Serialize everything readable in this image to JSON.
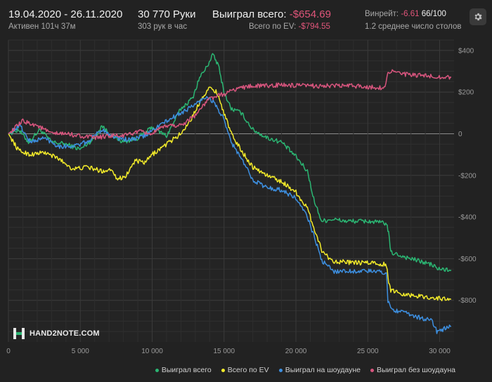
{
  "header": {
    "date_range": "19.04.2020 - 26.11.2020",
    "active": "Активен 101ч 37м",
    "hands": "30 770 Руки",
    "hands_per_hour": "303 рук в час",
    "won_total_label": "Выиграл всего:",
    "won_total_value": "-$654.69",
    "ev_label": "Всего по EV:",
    "ev_value": "-$794.55",
    "winrate_label": "Винрейт:",
    "winrate_value": "-6.61",
    "winrate_rest": "66/100",
    "avg_tables": "1.2 среднее число столов"
  },
  "logo": {
    "text": "HAND2NOTE.COM"
  },
  "icons": {
    "settings": "gear-icon",
    "logo": "hand2note-logo-icon"
  },
  "legend": [
    {
      "label": "Выиграл всего",
      "color": "#2bb673"
    },
    {
      "label": "Всего по EV",
      "color": "#f2ea2a"
    },
    {
      "label": "Выиграл на шоудауне",
      "color": "#3d8fe0"
    },
    {
      "label": "Выиграл без шоудауна",
      "color": "#d8557e"
    }
  ],
  "chart_data": {
    "type": "line",
    "xlim": [
      0,
      31000
    ],
    "ylim": [
      -1000,
      450
    ],
    "x_ticks": [
      {
        "v": 0,
        "label": "0"
      },
      {
        "v": 5000,
        "label": "5 000"
      },
      {
        "v": 10000,
        "label": "10 000"
      },
      {
        "v": 15000,
        "label": "15 000"
      },
      {
        "v": 20000,
        "label": "20 000"
      },
      {
        "v": 25000,
        "label": "25 000"
      },
      {
        "v": 30000,
        "label": "30 000"
      }
    ],
    "y_ticks": [
      {
        "v": 400,
        "label": "$400"
      },
      {
        "v": 200,
        "label": "$200"
      },
      {
        "v": 0,
        "label": "0"
      },
      {
        "v": -200,
        "label": "-$200"
      },
      {
        "v": -400,
        "label": "-$400"
      },
      {
        "v": -600,
        "label": "-$600"
      },
      {
        "v": -800,
        "label": "-$800"
      }
    ],
    "grid": true,
    "legend_position": "bottom-right",
    "series": [
      {
        "name": "Выиграл всего",
        "color": "#2bb673",
        "points": [
          [
            0,
            0
          ],
          [
            700,
            20
          ],
          [
            1400,
            -40
          ],
          [
            2200,
            20
          ],
          [
            3000,
            -40
          ],
          [
            4000,
            -50
          ],
          [
            5000,
            -75
          ],
          [
            6000,
            -20
          ],
          [
            6500,
            40
          ],
          [
            7000,
            0
          ],
          [
            8000,
            -40
          ],
          [
            9000,
            -20
          ],
          [
            10000,
            30
          ],
          [
            11000,
            -10
          ],
          [
            12000,
            120
          ],
          [
            12800,
            170
          ],
          [
            13300,
            270
          ],
          [
            13800,
            320
          ],
          [
            14200,
            380
          ],
          [
            14600,
            330
          ],
          [
            15000,
            200
          ],
          [
            15500,
            120
          ],
          [
            16200,
            100
          ],
          [
            17000,
            20
          ],
          [
            18000,
            -20
          ],
          [
            19000,
            -40
          ],
          [
            20000,
            -110
          ],
          [
            20800,
            -180
          ],
          [
            21300,
            -330
          ],
          [
            21800,
            -420
          ],
          [
            22500,
            -410
          ],
          [
            23500,
            -420
          ],
          [
            25000,
            -420
          ],
          [
            26300,
            -430
          ],
          [
            26450,
            -480
          ],
          [
            26600,
            -570
          ],
          [
            27500,
            -590
          ],
          [
            28500,
            -610
          ],
          [
            29500,
            -630
          ],
          [
            29900,
            -650
          ],
          [
            30800,
            -655
          ]
        ]
      },
      {
        "name": "Всего по EV",
        "color": "#f2ea2a",
        "points": [
          [
            0,
            0
          ],
          [
            700,
            -80
          ],
          [
            1500,
            -100
          ],
          [
            2500,
            -90
          ],
          [
            3500,
            -120
          ],
          [
            4500,
            -170
          ],
          [
            5500,
            -160
          ],
          [
            6500,
            -180
          ],
          [
            7200,
            -170
          ],
          [
            7600,
            -220
          ],
          [
            8200,
            -200
          ],
          [
            8800,
            -130
          ],
          [
            9500,
            -140
          ],
          [
            10000,
            -100
          ],
          [
            11000,
            -50
          ],
          [
            12000,
            0
          ],
          [
            12800,
            80
          ],
          [
            13500,
            180
          ],
          [
            14000,
            220
          ],
          [
            14500,
            200
          ],
          [
            15000,
            100
          ],
          [
            15500,
            0
          ],
          [
            16200,
            -80
          ],
          [
            17000,
            -160
          ],
          [
            18000,
            -200
          ],
          [
            19000,
            -230
          ],
          [
            20000,
            -280
          ],
          [
            20800,
            -360
          ],
          [
            21300,
            -460
          ],
          [
            21800,
            -560
          ],
          [
            22500,
            -610
          ],
          [
            24000,
            -620
          ],
          [
            25500,
            -620
          ],
          [
            26300,
            -630
          ],
          [
            26450,
            -720
          ],
          [
            26600,
            -750
          ],
          [
            27500,
            -770
          ],
          [
            28500,
            -780
          ],
          [
            29800,
            -790
          ],
          [
            30800,
            -795
          ]
        ]
      },
      {
        "name": "Выиграл на шоудауне",
        "color": "#3d8fe0",
        "points": [
          [
            0,
            0
          ],
          [
            800,
            40
          ],
          [
            1500,
            -40
          ],
          [
            2500,
            -20
          ],
          [
            3500,
            -60
          ],
          [
            4500,
            -60
          ],
          [
            5500,
            -40
          ],
          [
            6500,
            20
          ],
          [
            7500,
            -20
          ],
          [
            8500,
            -30
          ],
          [
            9500,
            -10
          ],
          [
            10500,
            40
          ],
          [
            11500,
            80
          ],
          [
            12500,
            120
          ],
          [
            13200,
            150
          ],
          [
            13800,
            180
          ],
          [
            14300,
            150
          ],
          [
            14900,
            80
          ],
          [
            15500,
            -40
          ],
          [
            16200,
            -120
          ],
          [
            17000,
            -220
          ],
          [
            18000,
            -260
          ],
          [
            19000,
            -270
          ],
          [
            20000,
            -310
          ],
          [
            20800,
            -400
          ],
          [
            21300,
            -500
          ],
          [
            21800,
            -610
          ],
          [
            22600,
            -660
          ],
          [
            24000,
            -660
          ],
          [
            25500,
            -660
          ],
          [
            26300,
            -670
          ],
          [
            26400,
            -800
          ],
          [
            26600,
            -840
          ],
          [
            27500,
            -860
          ],
          [
            28500,
            -880
          ],
          [
            29500,
            -900
          ],
          [
            29800,
            -950
          ],
          [
            30800,
            -925
          ]
        ]
      },
      {
        "name": "Выиграл без шоудауна",
        "color": "#d8557e",
        "points": [
          [
            0,
            0
          ],
          [
            1000,
            60
          ],
          [
            2000,
            40
          ],
          [
            3000,
            0
          ],
          [
            4000,
            0
          ],
          [
            5000,
            -10
          ],
          [
            6000,
            -20
          ],
          [
            7000,
            -10
          ],
          [
            8000,
            -10
          ],
          [
            9000,
            10
          ],
          [
            10000,
            0
          ],
          [
            11000,
            40
          ],
          [
            12000,
            40
          ],
          [
            13000,
            90
          ],
          [
            14000,
            170
          ],
          [
            15000,
            190
          ],
          [
            16000,
            220
          ],
          [
            17000,
            230
          ],
          [
            18000,
            230
          ],
          [
            19000,
            235
          ],
          [
            20000,
            230
          ],
          [
            21000,
            230
          ],
          [
            22000,
            230
          ],
          [
            23000,
            230
          ],
          [
            24000,
            230
          ],
          [
            25000,
            225
          ],
          [
            26200,
            220
          ],
          [
            26400,
            300
          ],
          [
            26700,
            300
          ],
          [
            27500,
            285
          ],
          [
            28500,
            280
          ],
          [
            29500,
            275
          ],
          [
            30800,
            270
          ]
        ]
      }
    ]
  }
}
